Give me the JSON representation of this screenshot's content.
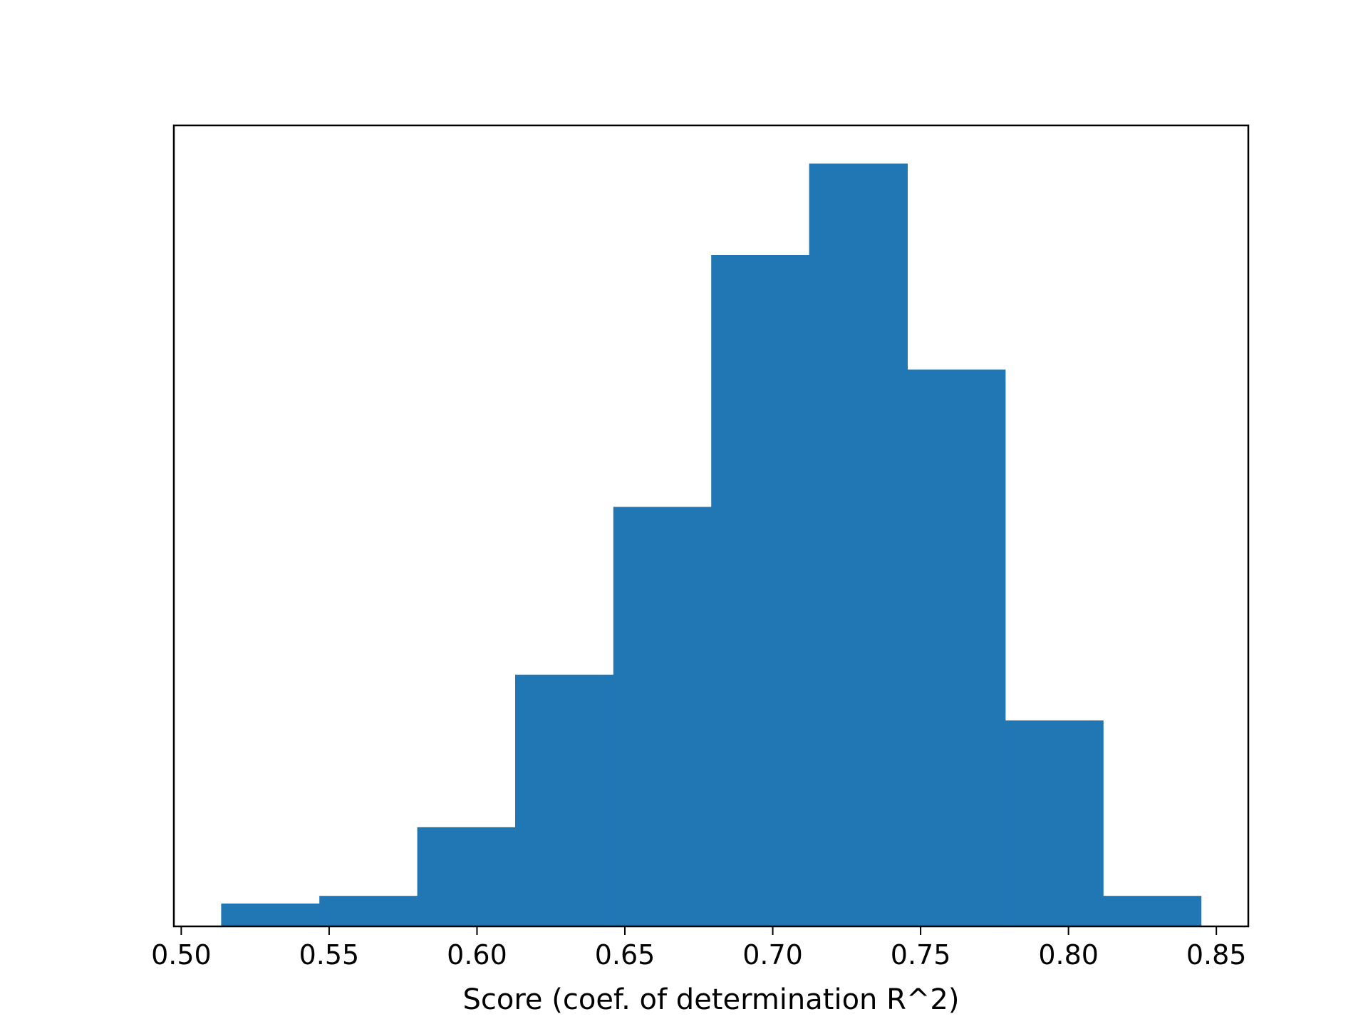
{
  "chart_data": {
    "type": "bar",
    "subtype": "histogram",
    "title": "",
    "xlabel": "Score (coef. of determination R^2)",
    "ylabel": "",
    "bins": [
      {
        "x0": 0.5135,
        "x1": 0.5467,
        "count": 3
      },
      {
        "x0": 0.5467,
        "x1": 0.5798,
        "count": 4
      },
      {
        "x0": 0.5798,
        "x1": 0.6129,
        "count": 13
      },
      {
        "x0": 0.6129,
        "x1": 0.6461,
        "count": 33
      },
      {
        "x0": 0.6461,
        "x1": 0.6792,
        "count": 55
      },
      {
        "x0": 0.6792,
        "x1": 0.7123,
        "count": 88
      },
      {
        "x0": 0.7123,
        "x1": 0.7455,
        "count": 100
      },
      {
        "x0": 0.7455,
        "x1": 0.7786,
        "count": 73
      },
      {
        "x0": 0.7786,
        "x1": 0.8117,
        "count": 27
      },
      {
        "x0": 0.8117,
        "x1": 0.8448,
        "count": 4
      }
    ],
    "xlim": [
      0.4975,
      0.8608
    ],
    "ylim": [
      0,
      105
    ],
    "x_ticks": [
      0.5,
      0.55,
      0.6,
      0.65,
      0.7,
      0.75,
      0.8,
      0.85
    ],
    "x_tick_labels": [
      "0.50",
      "0.55",
      "0.60",
      "0.65",
      "0.70",
      "0.75",
      "0.80",
      "0.85"
    ],
    "y_ticks_visible": false,
    "grid": false,
    "legend": "none",
    "bar_color": "#2177b4",
    "axis_color": "#000000"
  }
}
